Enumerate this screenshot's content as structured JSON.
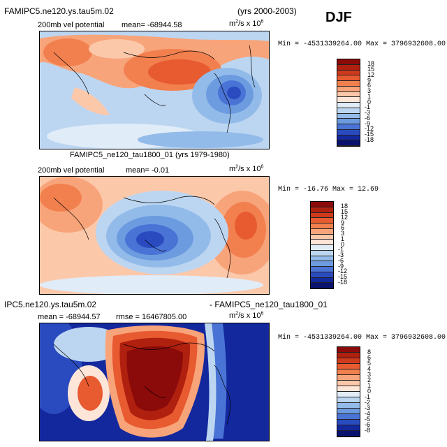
{
  "header": {
    "case_name": "FAMIPC5.ne120.ys.tau5m.02",
    "years": "(yrs 2000-2003)",
    "season": "DJF"
  },
  "panels": [
    {
      "variable": "200mb vel potential",
      "mean_label": "mean= -68944.58",
      "units_main": "m",
      "units_sup1": "2",
      "units_mid": "/s x 10",
      "units_sup2": "6",
      "minmax": "Min = -4531339264.00 Max = 3796932608.00",
      "colorbar": {
        "labels": [
          "18",
          "15",
          "12",
          "9",
          "6",
          "3",
          "1",
          "0",
          "-1",
          "-3",
          "-6",
          "-9",
          "-12",
          "-15",
          "-18"
        ],
        "colors": [
          "#8b0a0a",
          "#b0200f",
          "#d03a1c",
          "#e85a30",
          "#f2804f",
          "#f8a47a",
          "#fcc8aa",
          "#fde6d8",
          "#e0ecf8",
          "#bcd6f1",
          "#93bbe9",
          "#6d9be0",
          "#4a73d6",
          "#2a4bbf",
          "#14289e",
          "#0a1270"
        ]
      }
    },
    {
      "title": "FAMIPC5_ne120_tau1800_01 (yrs 1979-1980)",
      "variable": "200mb vel potential",
      "mean_label": "mean=  -0.01",
      "units_main": "m",
      "units_sup1": "2",
      "units_mid": "/s x 10",
      "units_sup2": "6",
      "minmax": "Min = -16.76 Max =  12.69",
      "colorbar": {
        "labels": [
          "18",
          "15",
          "12",
          "9",
          "6",
          "3",
          "1",
          "0",
          "-1",
          "-3",
          "-6",
          "-9",
          "-12",
          "-15",
          "-18"
        ],
        "colors": [
          "#8b0a0a",
          "#b0200f",
          "#d03a1c",
          "#e85a30",
          "#f2804f",
          "#f8a47a",
          "#fcc8aa",
          "#fde6d8",
          "#e0ecf8",
          "#bcd6f1",
          "#93bbe9",
          "#6d9be0",
          "#4a73d6",
          "#2a4bbf",
          "#14289e",
          "#0a1270"
        ]
      }
    },
    {
      "title_left": "IPC5.ne120.ys.tau5m.02",
      "title_right": "- FAMIPC5_ne120_tau1800_01",
      "mean_label": "mean = -68944.57",
      "rmse_label": "rmse = 16467805.00",
      "units_main": "m",
      "units_sup1": "2",
      "units_mid": "/s x 10",
      "units_sup2": "6",
      "minmax": "Min = -4531339264.00 Max = 3796932608.00",
      "colorbar": {
        "labels": [
          "8",
          "6",
          "5",
          "4",
          "3",
          "2",
          "1",
          "0",
          "-1",
          "-2",
          "-3",
          "-4",
          "-5",
          "-6",
          "-8"
        ],
        "colors": [
          "#8b0a0a",
          "#b0200f",
          "#d03a1c",
          "#e85a30",
          "#f2804f",
          "#f8a47a",
          "#fcc8aa",
          "#fde6d8",
          "#e0ecf8",
          "#bcd6f1",
          "#93bbe9",
          "#6d9be0",
          "#4a73d6",
          "#2a4bbf",
          "#14289e",
          "#0a1270"
        ]
      }
    }
  ]
}
